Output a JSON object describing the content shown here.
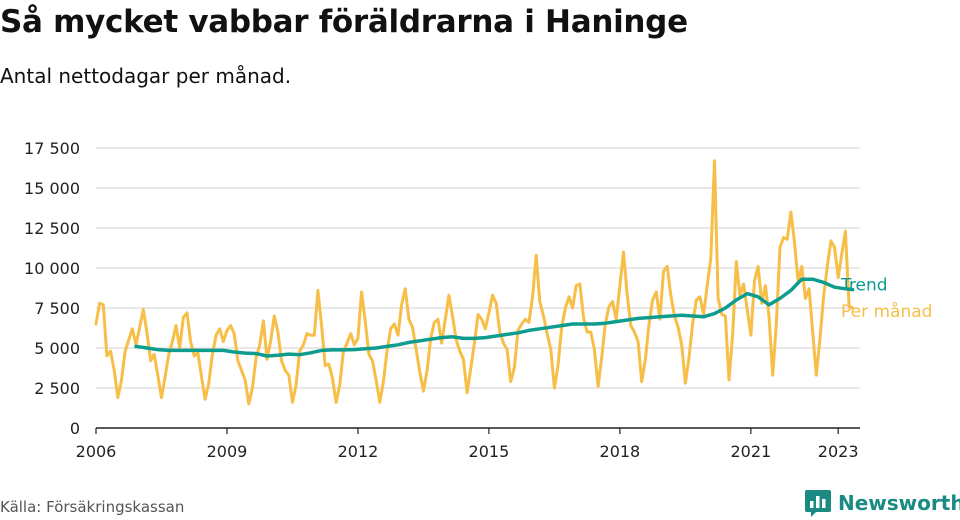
{
  "header": {
    "title": "Så mycket vabbar föräldrarna i Haninge",
    "subtitle": "Antal nettodagar per månad."
  },
  "footer": {
    "source": "Källa: Försäkringskassan",
    "brand": "Newsworthy"
  },
  "colors": {
    "monthly": "#f7be48",
    "trend": "#0e9c8e",
    "grid": "#d9d9d9",
    "axis": "#222222",
    "brand": "#1a8a82"
  },
  "icons": {
    "brand_logo": "bar-chart-speech-bubble-icon"
  },
  "chart_data": {
    "type": "line",
    "ylim": [
      0,
      17500
    ],
    "yticks": [
      0,
      2500,
      5000,
      7500,
      10000,
      12500,
      15000,
      17500
    ],
    "ytick_labels": [
      "0",
      "2 500",
      "5 000",
      "7 500",
      "10 000",
      "12 500",
      "15 000",
      "17 500"
    ],
    "xlim": [
      "2006-01",
      "2023-07"
    ],
    "xticks": [
      "2006-01",
      "2009-01",
      "2012-01",
      "2015-01",
      "2018-01",
      "2021-01",
      "2023-01"
    ],
    "xtick_labels": [
      "2006",
      "2009",
      "2012",
      "2015",
      "2018",
      "2021",
      "2023"
    ],
    "grid": "horizontal",
    "series": [
      {
        "name": "Per månad",
        "color": "#f7be48",
        "points": [
          [
            "2006-01",
            6500
          ],
          [
            "2006-02",
            7800
          ],
          [
            "2006-03",
            7700
          ],
          [
            "2006-04",
            4500
          ],
          [
            "2006-05",
            4800
          ],
          [
            "2006-06",
            3600
          ],
          [
            "2006-07",
            1900
          ],
          [
            "2006-08",
            3000
          ],
          [
            "2006-09",
            4800
          ],
          [
            "2006-10",
            5500
          ],
          [
            "2006-11",
            6200
          ],
          [
            "2006-12",
            5200
          ],
          [
            "2007-01",
            6300
          ],
          [
            "2007-02",
            7400
          ],
          [
            "2007-03",
            6000
          ],
          [
            "2007-04",
            4200
          ],
          [
            "2007-05",
            4600
          ],
          [
            "2007-06",
            3300
          ],
          [
            "2007-07",
            1900
          ],
          [
            "2007-08",
            3200
          ],
          [
            "2007-09",
            4600
          ],
          [
            "2007-10",
            5400
          ],
          [
            "2007-11",
            6400
          ],
          [
            "2007-12",
            5000
          ],
          [
            "2008-01",
            6900
          ],
          [
            "2008-02",
            7200
          ],
          [
            "2008-03",
            5400
          ],
          [
            "2008-04",
            4500
          ],
          [
            "2008-05",
            4700
          ],
          [
            "2008-06",
            3200
          ],
          [
            "2008-07",
            1800
          ],
          [
            "2008-08",
            2800
          ],
          [
            "2008-09",
            4600
          ],
          [
            "2008-10",
            5800
          ],
          [
            "2008-11",
            6200
          ],
          [
            "2008-12",
            5400
          ],
          [
            "2009-01",
            6100
          ],
          [
            "2009-02",
            6400
          ],
          [
            "2009-03",
            5900
          ],
          [
            "2009-04",
            4200
          ],
          [
            "2009-05",
            3600
          ],
          [
            "2009-06",
            3000
          ],
          [
            "2009-07",
            1500
          ],
          [
            "2009-08",
            2500
          ],
          [
            "2009-09",
            4400
          ],
          [
            "2009-10",
            5200
          ],
          [
            "2009-11",
            6700
          ],
          [
            "2009-12",
            4300
          ],
          [
            "2010-01",
            5400
          ],
          [
            "2010-02",
            7000
          ],
          [
            "2010-03",
            6000
          ],
          [
            "2010-04",
            4200
          ],
          [
            "2010-05",
            3600
          ],
          [
            "2010-06",
            3300
          ],
          [
            "2010-07",
            1600
          ],
          [
            "2010-08",
            2700
          ],
          [
            "2010-09",
            4800
          ],
          [
            "2010-10",
            5200
          ],
          [
            "2010-11",
            5900
          ],
          [
            "2010-12",
            5800
          ],
          [
            "2011-01",
            5800
          ],
          [
            "2011-02",
            8600
          ],
          [
            "2011-03",
            6400
          ],
          [
            "2011-04",
            3900
          ],
          [
            "2011-05",
            4000
          ],
          [
            "2011-06",
            3100
          ],
          [
            "2011-07",
            1600
          ],
          [
            "2011-08",
            2700
          ],
          [
            "2011-09",
            4800
          ],
          [
            "2011-10",
            5300
          ],
          [
            "2011-11",
            5900
          ],
          [
            "2011-12",
            5200
          ],
          [
            "2012-01",
            5600
          ],
          [
            "2012-02",
            8500
          ],
          [
            "2012-03",
            6700
          ],
          [
            "2012-04",
            4600
          ],
          [
            "2012-05",
            4200
          ],
          [
            "2012-06",
            3000
          ],
          [
            "2012-07",
            1600
          ],
          [
            "2012-08",
            2900
          ],
          [
            "2012-09",
            4800
          ],
          [
            "2012-10",
            6200
          ],
          [
            "2012-11",
            6500
          ],
          [
            "2012-12",
            5800
          ],
          [
            "2013-01",
            7700
          ],
          [
            "2013-02",
            8700
          ],
          [
            "2013-03",
            6800
          ],
          [
            "2013-04",
            6300
          ],
          [
            "2013-05",
            4900
          ],
          [
            "2013-06",
            3500
          ],
          [
            "2013-07",
            2300
          ],
          [
            "2013-08",
            3600
          ],
          [
            "2013-09",
            5600
          ],
          [
            "2013-10",
            6600
          ],
          [
            "2013-11",
            6800
          ],
          [
            "2013-12",
            5300
          ],
          [
            "2014-01",
            6800
          ],
          [
            "2014-02",
            8300
          ],
          [
            "2014-03",
            7000
          ],
          [
            "2014-04",
            5500
          ],
          [
            "2014-05",
            4800
          ],
          [
            "2014-06",
            4300
          ],
          [
            "2014-07",
            2200
          ],
          [
            "2014-08",
            3700
          ],
          [
            "2014-09",
            5300
          ],
          [
            "2014-10",
            7100
          ],
          [
            "2014-11",
            6800
          ],
          [
            "2014-12",
            6200
          ],
          [
            "2015-01",
            7200
          ],
          [
            "2015-02",
            8300
          ],
          [
            "2015-03",
            7800
          ],
          [
            "2015-04",
            6000
          ],
          [
            "2015-05",
            5300
          ],
          [
            "2015-06",
            4900
          ],
          [
            "2015-07",
            2900
          ],
          [
            "2015-08",
            3800
          ],
          [
            "2015-09",
            6100
          ],
          [
            "2015-10",
            6500
          ],
          [
            "2015-11",
            6800
          ],
          [
            "2015-12",
            6600
          ],
          [
            "2016-01",
            8200
          ],
          [
            "2016-02",
            10800
          ],
          [
            "2016-03",
            7900
          ],
          [
            "2016-04",
            7000
          ],
          [
            "2016-05",
            5900
          ],
          [
            "2016-06",
            4900
          ],
          [
            "2016-07",
            2500
          ],
          [
            "2016-08",
            3900
          ],
          [
            "2016-09",
            6300
          ],
          [
            "2016-10",
            7500
          ],
          [
            "2016-11",
            8200
          ],
          [
            "2016-12",
            7500
          ],
          [
            "2017-01",
            8900
          ],
          [
            "2017-02",
            9000
          ],
          [
            "2017-03",
            6900
          ],
          [
            "2017-04",
            6000
          ],
          [
            "2017-05",
            6000
          ],
          [
            "2017-06",
            4900
          ],
          [
            "2017-07",
            2600
          ],
          [
            "2017-08",
            4400
          ],
          [
            "2017-09",
            6500
          ],
          [
            "2017-10",
            7600
          ],
          [
            "2017-11",
            7900
          ],
          [
            "2017-12",
            6800
          ],
          [
            "2018-01",
            8900
          ],
          [
            "2018-02",
            11000
          ],
          [
            "2018-03",
            8300
          ],
          [
            "2018-04",
            6400
          ],
          [
            "2018-05",
            6000
          ],
          [
            "2018-06",
            5400
          ],
          [
            "2018-07",
            2900
          ],
          [
            "2018-08",
            4300
          ],
          [
            "2018-09",
            6500
          ],
          [
            "2018-10",
            8000
          ],
          [
            "2018-11",
            8500
          ],
          [
            "2018-12",
            6800
          ],
          [
            "2019-01",
            9800
          ],
          [
            "2019-02",
            10100
          ],
          [
            "2019-03",
            8300
          ],
          [
            "2019-04",
            7000
          ],
          [
            "2019-05",
            6300
          ],
          [
            "2019-06",
            5200
          ],
          [
            "2019-07",
            2800
          ],
          [
            "2019-08",
            4400
          ],
          [
            "2019-09",
            6500
          ],
          [
            "2019-10",
            8000
          ],
          [
            "2019-11",
            8200
          ],
          [
            "2019-12",
            7100
          ],
          [
            "2020-01",
            8900
          ],
          [
            "2020-02",
            10600
          ],
          [
            "2020-03",
            16700
          ],
          [
            "2020-04",
            8100
          ],
          [
            "2020-05",
            7100
          ],
          [
            "2020-06",
            7000
          ],
          [
            "2020-07",
            3000
          ],
          [
            "2020-08",
            5900
          ],
          [
            "2020-09",
            10400
          ],
          [
            "2020-10",
            8300
          ],
          [
            "2020-11",
            9000
          ],
          [
            "2020-12",
            7400
          ],
          [
            "2021-01",
            5800
          ],
          [
            "2021-02",
            9200
          ],
          [
            "2021-03",
            10100
          ],
          [
            "2021-04",
            7800
          ],
          [
            "2021-05",
            8900
          ],
          [
            "2021-06",
            7000
          ],
          [
            "2021-07",
            3300
          ],
          [
            "2021-08",
            6500
          ],
          [
            "2021-09",
            11300
          ],
          [
            "2021-10",
            11900
          ],
          [
            "2021-11",
            11800
          ],
          [
            "2021-12",
            13500
          ],
          [
            "2022-01",
            11600
          ],
          [
            "2022-02",
            9100
          ],
          [
            "2022-03",
            10100
          ],
          [
            "2022-04",
            8100
          ],
          [
            "2022-05",
            8700
          ],
          [
            "2022-06",
            6000
          ],
          [
            "2022-07",
            3300
          ],
          [
            "2022-08",
            5600
          ],
          [
            "2022-09",
            8200
          ],
          [
            "2022-10",
            10100
          ],
          [
            "2022-11",
            11700
          ],
          [
            "2022-12",
            11300
          ],
          [
            "2023-01",
            9400
          ],
          [
            "2023-02",
            10900
          ],
          [
            "2023-03",
            12300
          ],
          [
            "2023-04",
            7600
          ],
          [
            "2023-05",
            7500
          ]
        ]
      },
      {
        "name": "Trend",
        "color": "#0e9c8e",
        "points": [
          [
            "2006-12",
            5100
          ],
          [
            "2007-03",
            5000
          ],
          [
            "2007-06",
            4900
          ],
          [
            "2007-09",
            4850
          ],
          [
            "2007-12",
            4850
          ],
          [
            "2008-03",
            4850
          ],
          [
            "2008-06",
            4850
          ],
          [
            "2008-09",
            4850
          ],
          [
            "2008-12",
            4850
          ],
          [
            "2009-03",
            4750
          ],
          [
            "2009-06",
            4680
          ],
          [
            "2009-09",
            4650
          ],
          [
            "2009-12",
            4500
          ],
          [
            "2010-03",
            4550
          ],
          [
            "2010-06",
            4620
          ],
          [
            "2010-09",
            4580
          ],
          [
            "2010-12",
            4700
          ],
          [
            "2011-03",
            4850
          ],
          [
            "2011-06",
            4880
          ],
          [
            "2011-09",
            4880
          ],
          [
            "2011-12",
            4900
          ],
          [
            "2012-03",
            4950
          ],
          [
            "2012-06",
            5000
          ],
          [
            "2012-09",
            5100
          ],
          [
            "2012-12",
            5200
          ],
          [
            "2013-03",
            5350
          ],
          [
            "2013-06",
            5450
          ],
          [
            "2013-09",
            5550
          ],
          [
            "2013-12",
            5650
          ],
          [
            "2014-03",
            5700
          ],
          [
            "2014-06",
            5600
          ],
          [
            "2014-09",
            5600
          ],
          [
            "2014-12",
            5650
          ],
          [
            "2015-03",
            5750
          ],
          [
            "2015-06",
            5850
          ],
          [
            "2015-09",
            5950
          ],
          [
            "2015-12",
            6100
          ],
          [
            "2016-03",
            6200
          ],
          [
            "2016-06",
            6300
          ],
          [
            "2016-09",
            6400
          ],
          [
            "2016-12",
            6500
          ],
          [
            "2017-03",
            6500
          ],
          [
            "2017-06",
            6500
          ],
          [
            "2017-09",
            6550
          ],
          [
            "2017-12",
            6650
          ],
          [
            "2018-03",
            6750
          ],
          [
            "2018-06",
            6850
          ],
          [
            "2018-09",
            6900
          ],
          [
            "2018-12",
            6950
          ],
          [
            "2019-03",
            7000
          ],
          [
            "2019-06",
            7050
          ],
          [
            "2019-09",
            7000
          ],
          [
            "2019-12",
            6950
          ],
          [
            "2020-03",
            7150
          ],
          [
            "2020-06",
            7500
          ],
          [
            "2020-09",
            8000
          ],
          [
            "2020-12",
            8400
          ],
          [
            "2021-03",
            8200
          ],
          [
            "2021-06",
            7700
          ],
          [
            "2021-09",
            8100
          ],
          [
            "2021-12",
            8600
          ],
          [
            "2022-03",
            9300
          ],
          [
            "2022-06",
            9300
          ],
          [
            "2022-09",
            9100
          ],
          [
            "2022-12",
            8800
          ],
          [
            "2023-03",
            8700
          ],
          [
            "2023-05",
            8650
          ]
        ]
      }
    ]
  }
}
